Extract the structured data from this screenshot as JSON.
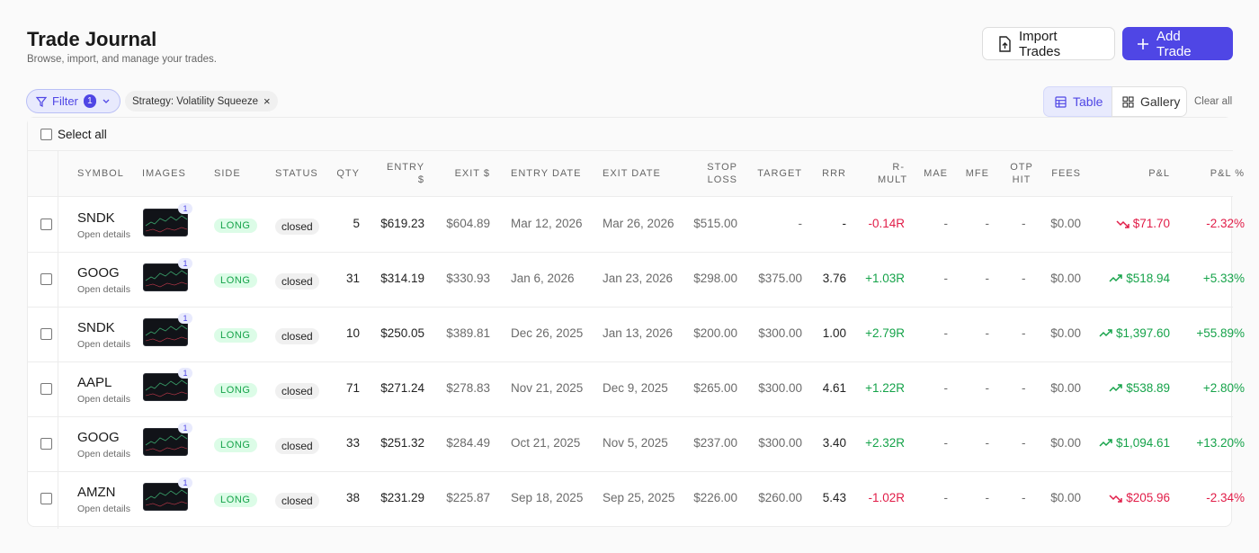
{
  "header": {
    "title": "Trade Journal",
    "subtitle": "Browse, import, and manage your trades."
  },
  "actions": {
    "import": "Import Trades",
    "add": "Add Trade"
  },
  "filters": {
    "filter": "Filter",
    "count": "1",
    "chip": "Strategy: Volatility Squeeze",
    "clear": "Clear all"
  },
  "views": {
    "table": "Table",
    "gallery": "Gallery"
  },
  "select_all": "Select all",
  "table": {
    "columns": [
      "SYMBOL",
      "IMAGES",
      "SIDE",
      "STATUS",
      "QTY",
      "ENTRY $",
      "EXIT $",
      "ENTRY DATE",
      "EXIT DATE",
      "STOP LOSS",
      "TARGET",
      "RRR",
      "R-MULT",
      "MAE",
      "MFE",
      "OTP HIT",
      "FEES",
      "P&L",
      "P&L %"
    ],
    "rows": [
      {
        "symbol": "SNDK",
        "link": "Open details",
        "images": "1",
        "side": "LONG",
        "status": "closed",
        "qty": "5",
        "entry": "$619.23",
        "exit": "$604.89",
        "entry_date": "Mar 12, 2026",
        "exit_date": "Mar 26, 2026",
        "stop": "$515.00",
        "target": "-",
        "rrr": "-",
        "r_mult": "-0.14R",
        "mae": "-",
        "mfe": "-",
        "otp": "-",
        "fees": "$0.00",
        "pnl": "$71.70",
        "pnl_pct": "-2.32%"
      },
      {
        "symbol": "GOOG",
        "link": "Open details",
        "images": "1",
        "side": "LONG",
        "status": "closed",
        "qty": "31",
        "entry": "$314.19",
        "exit": "$330.93",
        "entry_date": "Jan 6, 2026",
        "exit_date": "Jan 23, 2026",
        "stop": "$298.00",
        "target": "$375.00",
        "rrr": "3.76",
        "r_mult": "+1.03R",
        "mae": "-",
        "mfe": "-",
        "otp": "-",
        "fees": "$0.00",
        "pnl": "$518.94",
        "pnl_pct": "+5.33%"
      },
      {
        "symbol": "SNDK",
        "link": "Open details",
        "images": "1",
        "side": "LONG",
        "status": "closed",
        "qty": "10",
        "entry": "$250.05",
        "exit": "$389.81",
        "entry_date": "Dec 26, 2025",
        "exit_date": "Jan 13, 2026",
        "stop": "$200.00",
        "target": "$300.00",
        "rrr": "1.00",
        "r_mult": "+2.79R",
        "mae": "-",
        "mfe": "-",
        "otp": "-",
        "fees": "$0.00",
        "pnl": "$1,397.60",
        "pnl_pct": "+55.89%"
      },
      {
        "symbol": "AAPL",
        "link": "Open details",
        "images": "1",
        "side": "LONG",
        "status": "closed",
        "qty": "71",
        "entry": "$271.24",
        "exit": "$278.83",
        "entry_date": "Nov 21, 2025",
        "exit_date": "Dec 9, 2025",
        "stop": "$265.00",
        "target": "$300.00",
        "rrr": "4.61",
        "r_mult": "+1.22R",
        "mae": "-",
        "mfe": "-",
        "otp": "-",
        "fees": "$0.00",
        "pnl": "$538.89",
        "pnl_pct": "+2.80%"
      },
      {
        "symbol": "GOOG",
        "link": "Open details",
        "images": "1",
        "side": "LONG",
        "status": "closed",
        "qty": "33",
        "entry": "$251.32",
        "exit": "$284.49",
        "entry_date": "Oct 21, 2025",
        "exit_date": "Nov 5, 2025",
        "stop": "$237.00",
        "target": "$300.00",
        "rrr": "3.40",
        "r_mult": "+2.32R",
        "mae": "-",
        "mfe": "-",
        "otp": "-",
        "fees": "$0.00",
        "pnl": "$1,094.61",
        "pnl_pct": "+13.20%"
      },
      {
        "symbol": "AMZN",
        "link": "Open details",
        "images": "1",
        "side": "LONG",
        "status": "closed",
        "qty": "38",
        "entry": "$231.29",
        "exit": "$225.87",
        "entry_date": "Sep 18, 2025",
        "exit_date": "Sep 25, 2025",
        "stop": "$226.00",
        "target": "$260.00",
        "rrr": "5.43",
        "r_mult": "-1.02R",
        "mae": "-",
        "mfe": "-",
        "otp": "-",
        "fees": "$0.00",
        "pnl": "$205.96",
        "pnl_pct": "-2.34%"
      }
    ]
  }
}
